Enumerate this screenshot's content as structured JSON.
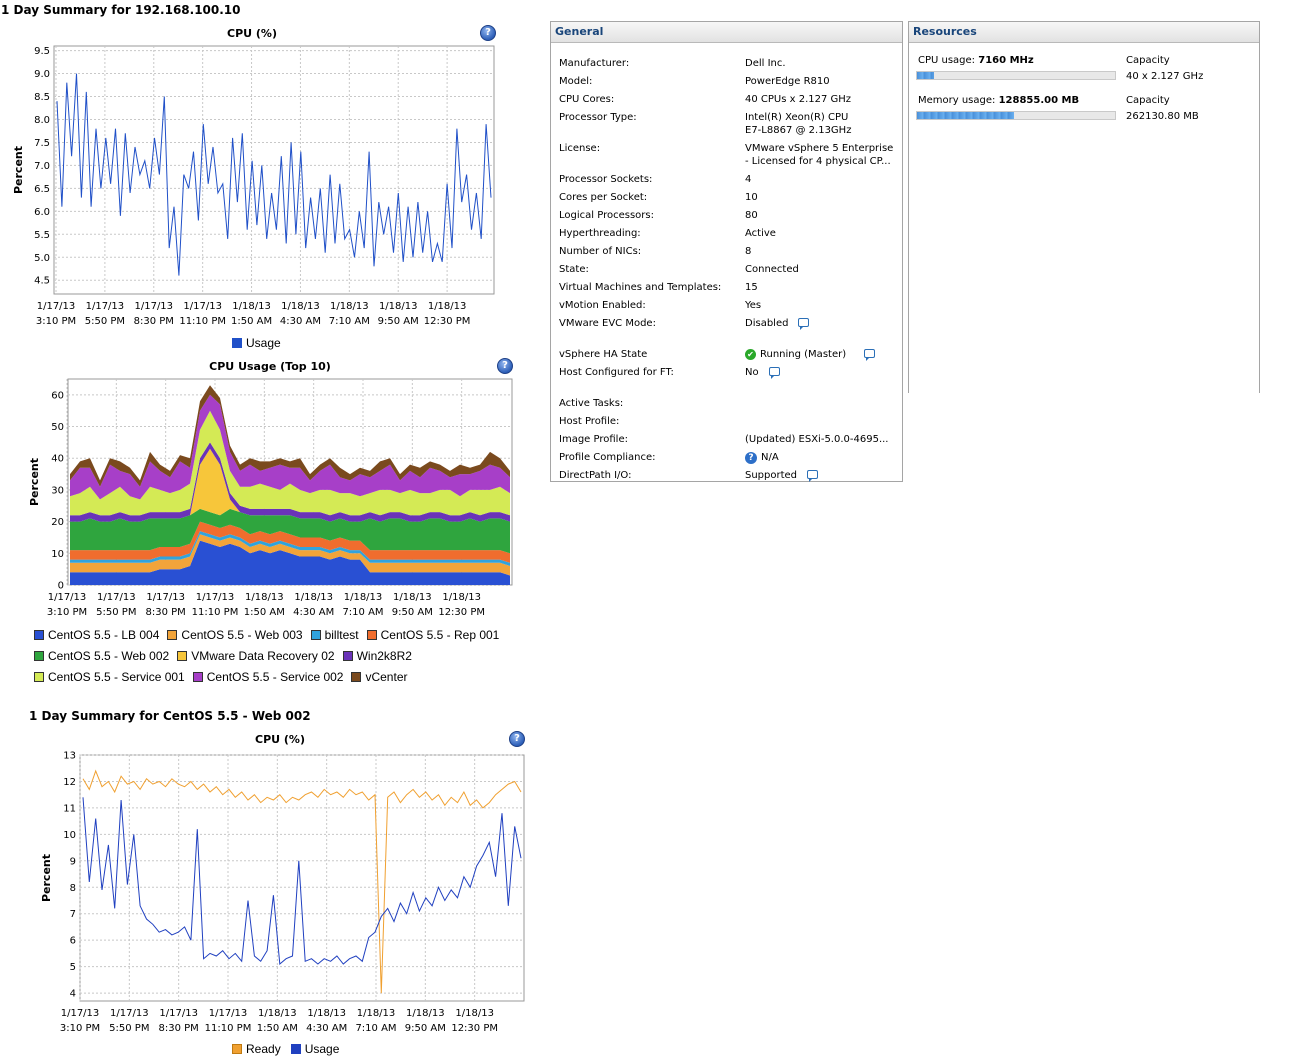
{
  "host_summary_title": "1 Day Summary for 192.168.100.10",
  "vm_summary_title": "1 Day Summary for CentOS 5.5 - Web 002",
  "help_glyph": "?",
  "x_ticks": [
    {
      "date": "1/17/13",
      "time": "3:10 PM"
    },
    {
      "date": "1/17/13",
      "time": "5:50 PM"
    },
    {
      "date": "1/17/13",
      "time": "8:30 PM"
    },
    {
      "date": "1/17/13",
      "time": "11:10 PM"
    },
    {
      "date": "1/18/13",
      "time": "1:50 AM"
    },
    {
      "date": "1/18/13",
      "time": "4:30 AM"
    },
    {
      "date": "1/18/13",
      "time": "7:10 AM"
    },
    {
      "date": "1/18/13",
      "time": "9:50 AM"
    },
    {
      "date": "1/18/13",
      "time": "12:30 PM"
    }
  ],
  "chart_data": [
    {
      "type": "line",
      "title": "CPU (%)",
      "ylabel": "Percent",
      "ylim": [
        4.2,
        9.6
      ],
      "yticks": [
        4.5,
        5.0,
        5.5,
        6.0,
        6.5,
        7.0,
        7.5,
        8.0,
        8.5,
        9.0,
        9.5
      ],
      "y_tick_decimals": 1,
      "series": [
        {
          "name": "Usage",
          "color": "#2050c8",
          "values": [
            8.4,
            6.1,
            8.8,
            7.2,
            9.0,
            6.3,
            8.6,
            6.1,
            7.8,
            6.5,
            7.6,
            6.6,
            7.8,
            5.9,
            7.7,
            6.4,
            7.4,
            6.8,
            7.1,
            6.5,
            7.6,
            6.8,
            8.5,
            5.2,
            6.1,
            4.6,
            6.8,
            6.5,
            7.3,
            5.8,
            7.9,
            6.6,
            7.4,
            6.4,
            6.6,
            5.4,
            7.6,
            6.2,
            7.7,
            5.6,
            7.1,
            5.7,
            7.0,
            5.4,
            6.4,
            5.6,
            7.2,
            5.3,
            7.5,
            5.5,
            7.3,
            5.2,
            6.3,
            5.4,
            6.5,
            5.1,
            6.8,
            5.3,
            6.6,
            5.4,
            5.6,
            5.0,
            6.0,
            5.2,
            7.3,
            4.8,
            6.2,
            5.5,
            6.1,
            5.1,
            6.4,
            4.9,
            6.1,
            5.0,
            6.2,
            5.1,
            6.0,
            4.9,
            5.3,
            4.9,
            6.6,
            5.2,
            7.8,
            6.2,
            6.8,
            5.6,
            6.4,
            5.4,
            7.9,
            6.3
          ]
        }
      ],
      "legend": [
        "Usage"
      ]
    },
    {
      "type": "area",
      "stacked": true,
      "title": "CPU Usage (Top 10)",
      "ylabel": "Percent",
      "ylim": [
        0,
        65
      ],
      "yticks": [
        0,
        10,
        20,
        30,
        40,
        50,
        60
      ],
      "series": [
        {
          "name": "CentOS 5.5 - LB 004",
          "color": "#2950d3",
          "values": [
            4,
            4,
            4,
            4,
            4,
            4,
            4,
            4,
            4,
            5,
            5,
            5,
            6,
            14,
            13,
            12,
            13,
            12,
            10,
            11,
            10,
            11,
            10,
            9,
            9,
            9,
            8,
            9,
            8,
            8,
            4,
            4,
            4,
            4,
            4,
            4,
            4,
            4,
            4,
            4,
            4,
            4,
            4,
            4,
            3
          ]
        },
        {
          "name": "CentOS 5.5 - Web 003",
          "color": "#f2a43a",
          "values": [
            3,
            3,
            3,
            3,
            3,
            3,
            3,
            3,
            3,
            3,
            3,
            3,
            3,
            2,
            2,
            2,
            2,
            2,
            2,
            2,
            2,
            2,
            2,
            2,
            2,
            2,
            2,
            2,
            2,
            2,
            3,
            3,
            3,
            3,
            3,
            3,
            3,
            3,
            3,
            3,
            3,
            3,
            3,
            3,
            3
          ]
        },
        {
          "name": "billtest",
          "color": "#31a3dd",
          "values": [
            1,
            1,
            1,
            1,
            1,
            1,
            1,
            1,
            1,
            1,
            1,
            1,
            1,
            1,
            1,
            1,
            1,
            1,
            1,
            1,
            1,
            1,
            1,
            1,
            1,
            1,
            1,
            1,
            1,
            1,
            1,
            1,
            1,
            1,
            1,
            1,
            1,
            1,
            1,
            1,
            1,
            1,
            1,
            1,
            1
          ]
        },
        {
          "name": "CentOS 5.5 - Rep 001",
          "color": "#f06d2e",
          "values": [
            3,
            3,
            3,
            3,
            3,
            3,
            3,
            3,
            3,
            3,
            3,
            3,
            3,
            3,
            3,
            3,
            3,
            3,
            3,
            3,
            3,
            3,
            3,
            3,
            3,
            3,
            3,
            3,
            3,
            3,
            3,
            3,
            3,
            3,
            3,
            3,
            3,
            3,
            3,
            3,
            3,
            3,
            3,
            3,
            3
          ]
        },
        {
          "name": "CentOS 5.5 - Web 002",
          "color": "#2fa53e",
          "values": [
            9,
            9,
            10,
            9,
            9,
            10,
            9,
            9,
            10,
            9,
            9,
            9,
            9,
            4,
            4,
            4,
            5,
            5,
            6,
            5,
            6,
            5,
            6,
            6,
            6,
            6,
            6,
            6,
            6,
            6,
            10,
            9,
            10,
            10,
            9,
            9,
            10,
            10,
            9,
            9,
            10,
            9,
            10,
            10,
            10
          ]
        },
        {
          "name": "VMware Data Recovery 02",
          "color": "#f7c63a",
          "values": [
            0,
            0,
            0,
            0,
            0,
            0,
            0,
            0,
            0,
            0,
            0,
            0,
            0,
            14,
            20,
            16,
            3,
            0,
            0,
            0,
            0,
            0,
            0,
            0,
            0,
            0,
            0,
            0,
            0,
            0,
            0,
            0,
            0,
            0,
            0,
            0,
            0,
            0,
            0,
            0,
            0,
            0,
            0,
            0,
            0
          ]
        },
        {
          "name": "Win2k8R2",
          "color": "#6a33b8",
          "values": [
            2,
            2,
            2,
            2,
            2,
            2,
            2,
            2,
            2,
            2,
            2,
            2,
            2,
            2,
            2,
            2,
            2,
            2,
            2,
            2,
            2,
            2,
            2,
            2,
            2,
            2,
            2,
            2,
            2,
            2,
            2,
            2,
            2,
            2,
            2,
            2,
            2,
            2,
            2,
            2,
            2,
            2,
            2,
            2,
            2
          ]
        },
        {
          "name": "CentOS 5.5 - Service 001",
          "color": "#d4ea55",
          "values": [
            6,
            7,
            8,
            5,
            7,
            8,
            6,
            5,
            8,
            7,
            6,
            7,
            8,
            9,
            10,
            9,
            7,
            6,
            7,
            8,
            7,
            6,
            8,
            7,
            6,
            7,
            8,
            6,
            7,
            6,
            6,
            8,
            7,
            6,
            8,
            7,
            6,
            7,
            8,
            6,
            7,
            8,
            7,
            8,
            7
          ]
        },
        {
          "name": "CentOS 5.5 - Service 002",
          "color": "#a73fc8",
          "values": [
            5,
            8,
            6,
            4,
            9,
            5,
            7,
            4,
            8,
            6,
            5,
            9,
            5,
            6,
            5,
            8,
            6,
            5,
            7,
            4,
            6,
            8,
            5,
            7,
            4,
            6,
            8,
            5,
            4,
            7,
            5,
            6,
            8,
            4,
            6,
            5,
            8,
            6,
            4,
            7,
            5,
            6,
            8,
            6,
            5
          ]
        },
        {
          "name": "vCenter",
          "color": "#7a4a1e",
          "values": [
            2,
            2,
            3,
            2,
            2,
            3,
            2,
            2,
            3,
            2,
            2,
            2,
            3,
            3,
            3,
            2,
            2,
            2,
            2,
            3,
            2,
            2,
            2,
            3,
            2,
            2,
            2,
            3,
            2,
            2,
            2,
            3,
            2,
            2,
            2,
            3,
            2,
            2,
            2,
            3,
            2,
            2,
            4,
            3,
            2
          ]
        }
      ],
      "legend": [
        [
          "CentOS 5.5 - LB 004",
          "CentOS 5.5 - Web 003",
          "billtest",
          "CentOS 5.5 - Rep 001"
        ],
        [
          "CentOS 5.5 - Web 002",
          "VMware Data Recovery 02",
          "Win2k8R2"
        ],
        [
          "CentOS 5.5 - Service 001",
          "CentOS 5.5 - Service 002",
          "vCenter"
        ]
      ]
    },
    {
      "type": "line",
      "title": "CPU (%)",
      "ylabel": "Percent",
      "ylim": [
        3.7,
        13
      ],
      "yticks": [
        4,
        5,
        6,
        7,
        8,
        9,
        10,
        11,
        12,
        13
      ],
      "y_tick_decimals": 0,
      "series": [
        {
          "name": "Ready",
          "color": "#f0a030",
          "values": [
            12.1,
            11.7,
            12.4,
            11.8,
            12.0,
            11.6,
            12.2,
            11.9,
            12.0,
            11.7,
            12.1,
            11.9,
            12.0,
            11.8,
            12.1,
            11.9,
            11.8,
            12.0,
            11.7,
            11.9,
            11.6,
            11.8,
            11.5,
            11.7,
            11.4,
            11.6,
            11.3,
            11.5,
            11.2,
            11.4,
            11.3,
            11.5,
            11.2,
            11.4,
            11.3,
            11.5,
            11.6,
            11.4,
            11.7,
            11.5,
            11.6,
            11.4,
            11.7,
            11.5,
            11.6,
            11.3,
            11.5,
            4.0,
            11.4,
            11.6,
            11.2,
            11.5,
            11.7,
            11.4,
            11.6,
            11.3,
            11.5,
            11.1,
            11.4,
            11.2,
            11.6,
            11.1,
            11.3,
            11.0,
            11.2,
            11.5,
            11.7,
            11.9,
            12.0,
            11.6
          ]
        },
        {
          "name": "Usage",
          "color": "#2040c0",
          "values": [
            11.4,
            8.2,
            10.6,
            7.9,
            9.6,
            7.2,
            11.3,
            8.1,
            10.0,
            7.3,
            6.8,
            6.6,
            6.3,
            6.4,
            6.2,
            6.3,
            6.5,
            6.0,
            10.2,
            5.3,
            5.5,
            5.4,
            5.6,
            5.3,
            5.5,
            5.2,
            7.5,
            5.4,
            5.2,
            5.6,
            7.7,
            5.1,
            5.3,
            5.4,
            9.0,
            5.2,
            5.3,
            5.1,
            5.3,
            5.2,
            5.4,
            5.1,
            5.3,
            5.4,
            5.2,
            6.1,
            6.3,
            6.9,
            7.2,
            6.7,
            7.4,
            7.0,
            7.8,
            7.1,
            7.6,
            7.3,
            8.0,
            7.5,
            7.9,
            7.6,
            8.4,
            8.0,
            8.8,
            9.2,
            9.7,
            8.4,
            10.8,
            7.3,
            10.3,
            9.1
          ]
        }
      ],
      "legend": [
        "Ready",
        "Usage"
      ]
    }
  ],
  "general": {
    "title": "General",
    "rows": [
      {
        "label": "Manufacturer:",
        "value": "Dell Inc."
      },
      {
        "label": "Model:",
        "value": "PowerEdge R810"
      },
      {
        "label": "CPU Cores:",
        "value": "40 CPUs x 2.127 GHz"
      },
      {
        "label": "Processor Type:",
        "value": "Intel(R) Xeon(R) CPU",
        "value2": "E7-L8867  @ 2.13GHz"
      },
      {
        "label": "License:",
        "value": "VMware vSphere 5 Enterprise",
        "value2": "- Licensed for 4 physical CP..."
      },
      {
        "label": "Processor Sockets:",
        "value": "4"
      },
      {
        "label": "Cores per Socket:",
        "value": "10"
      },
      {
        "label": "Logical Processors:",
        "value": "80"
      },
      {
        "label": "Hyperthreading:",
        "value": "Active"
      },
      {
        "label": "Number of NICs:",
        "value": "8"
      },
      {
        "label": "State:",
        "value": "Connected"
      },
      {
        "label": "Virtual Machines and Templates:",
        "value": "15"
      },
      {
        "label": "vMotion Enabled:",
        "value": "Yes"
      },
      {
        "label": "VMware EVC Mode:",
        "value": "Disabled"
      },
      {
        "label": "vSphere HA State",
        "value": "Running (Master)"
      },
      {
        "label": "Host Configured for FT:",
        "value": "No"
      },
      {
        "label": "Active Tasks:",
        "value": ""
      },
      {
        "label": "Host Profile:",
        "value": ""
      },
      {
        "label": "Image Profile:",
        "value": "(Updated) ESXi-5.0.0-4695..."
      },
      {
        "label": "Profile Compliance:",
        "value": "N/A"
      },
      {
        "label": "DirectPath I/O:",
        "value": "Supported"
      }
    ]
  },
  "resources": {
    "title": "Resources",
    "cpu": {
      "label": "CPU usage:",
      "value": "7160 MHz",
      "capacity_label": "Capacity",
      "capacity_value": "40 x 2.127 GHz",
      "usage_fraction": 0.084
    },
    "memory": {
      "label": "Memory usage:",
      "value": "128855.00 MB",
      "capacity_label": "Capacity",
      "capacity_value": "262130.80 MB",
      "usage_fraction": 0.492
    }
  }
}
